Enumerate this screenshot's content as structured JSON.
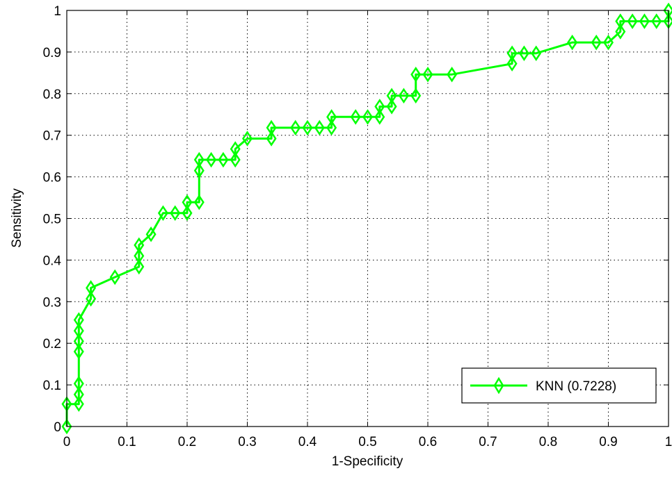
{
  "chart_data": {
    "type": "line",
    "title": "",
    "xlabel": "1-Specificity",
    "ylabel": "Sensitivity",
    "xlim": [
      0,
      1
    ],
    "ylim": [
      0,
      1
    ],
    "grid": true,
    "x_ticks": [
      "0",
      "0.1",
      "0.2",
      "0.3",
      "0.4",
      "0.5",
      "0.6",
      "0.7",
      "0.8",
      "0.9",
      "1"
    ],
    "y_ticks": [
      "0",
      "0.1",
      "0.2",
      "0.3",
      "0.4",
      "0.5",
      "0.6",
      "0.7",
      "0.8",
      "0.9",
      "1"
    ],
    "legend_position": "bottom-right",
    "series": [
      {
        "name": "KNN (0.7228)",
        "color": "#00ff00",
        "marker": "diamond",
        "x": [
          0,
          0,
          0.02,
          0.02,
          0.02,
          0.02,
          0.02,
          0.02,
          0.02,
          0.04,
          0.04,
          0.08,
          0.12,
          0.12,
          0.12,
          0.14,
          0.16,
          0.18,
          0.2,
          0.2,
          0.22,
          0.22,
          0.22,
          0.24,
          0.26,
          0.28,
          0.28,
          0.3,
          0.34,
          0.34,
          0.38,
          0.4,
          0.42,
          0.44,
          0.44,
          0.48,
          0.5,
          0.52,
          0.52,
          0.54,
          0.54,
          0.56,
          0.58,
          0.58,
          0.6,
          0.64,
          0.74,
          0.74,
          0.76,
          0.78,
          0.84,
          0.88,
          0.9,
          0.92,
          0.92,
          0.94,
          0.96,
          0.98,
          1.0,
          1.0
        ],
        "y": [
          0,
          0.054,
          0.054,
          0.077,
          0.103,
          0.18,
          0.205,
          0.23,
          0.256,
          0.307,
          0.333,
          0.359,
          0.384,
          0.41,
          0.436,
          0.462,
          0.513,
          0.513,
          0.513,
          0.539,
          0.539,
          0.615,
          0.641,
          0.641,
          0.641,
          0.641,
          0.667,
          0.692,
          0.692,
          0.718,
          0.718,
          0.718,
          0.718,
          0.718,
          0.744,
          0.744,
          0.744,
          0.744,
          0.769,
          0.769,
          0.795,
          0.795,
          0.795,
          0.846,
          0.846,
          0.846,
          0.872,
          0.897,
          0.897,
          0.897,
          0.923,
          0.923,
          0.923,
          0.949,
          0.974,
          0.974,
          0.974,
          0.974,
          0.974,
          1.0
        ]
      }
    ]
  }
}
